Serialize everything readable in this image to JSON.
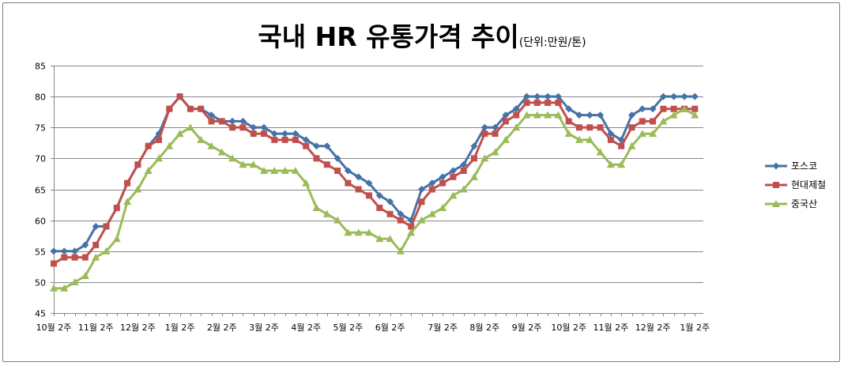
{
  "chart_data": {
    "type": "line",
    "title": "국내 HR 유통가격 추이",
    "subtitle": "(단위:만원/톤)",
    "xlabel": "",
    "ylabel": "",
    "ylim": [
      45,
      85
    ],
    "yticks": [
      45,
      50,
      55,
      60,
      65,
      70,
      75,
      80,
      85
    ],
    "grid": "horizontal",
    "legend_position": "right",
    "x_tick_labels": [
      "10월 2주",
      "11월 2주",
      "12월 2주",
      "1월 2주",
      "2월 2주",
      "3월 2주",
      "4월 2주",
      "5월 2주",
      "6월 2주",
      "7월 2주",
      "8월 2주",
      "9월 2주",
      "10월 2주",
      "11월 2주",
      "12월 2주",
      "1월 2주"
    ],
    "x_tick_positions": [
      0,
      4,
      8,
      12,
      16,
      20,
      24,
      28,
      32,
      37,
      41,
      45,
      49,
      53,
      57,
      61
    ],
    "series": [
      {
        "name": "포스코",
        "color": "#4572A7",
        "marker": "diamond",
        "values": [
          55,
          55,
          55,
          56,
          59,
          59,
          62,
          66,
          69,
          72,
          74,
          78,
          80,
          78,
          78,
          77,
          76,
          76,
          76,
          75,
          75,
          74,
          74,
          74,
          73,
          72,
          72,
          70,
          68,
          67,
          66,
          64,
          63,
          61,
          60,
          65,
          66,
          67,
          68,
          69,
          72,
          75,
          75,
          77,
          78,
          80,
          80,
          80,
          80,
          78,
          77,
          77,
          77,
          74,
          73,
          77,
          78,
          78,
          80,
          80,
          80,
          80
        ]
      },
      {
        "name": "현대제철",
        "color": "#C0504D",
        "marker": "square",
        "values": [
          53,
          54,
          54,
          54,
          56,
          59,
          62,
          66,
          69,
          72,
          73,
          78,
          80,
          78,
          78,
          76,
          76,
          75,
          75,
          74,
          74,
          73,
          73,
          73,
          72,
          70,
          69,
          68,
          66,
          65,
          64,
          62,
          61,
          60,
          59,
          63,
          65,
          66,
          67,
          68,
          70,
          74,
          74,
          76,
          77,
          79,
          79,
          79,
          79,
          76,
          75,
          75,
          75,
          73,
          72,
          75,
          76,
          76,
          78,
          78,
          78,
          78
        ]
      },
      {
        "name": "중국산",
        "color": "#9BBB59",
        "marker": "triangle",
        "values": [
          49,
          49,
          50,
          51,
          54,
          55,
          57,
          63,
          65,
          68,
          70,
          72,
          74,
          75,
          73,
          72,
          71,
          70,
          69,
          69,
          68,
          68,
          68,
          68,
          66,
          62,
          61,
          60,
          58,
          58,
          58,
          57,
          57,
          55,
          58,
          60,
          61,
          62,
          64,
          65,
          67,
          70,
          71,
          73,
          75,
          77,
          77,
          77,
          77,
          74,
          73,
          73,
          71,
          69,
          69,
          72,
          74,
          74,
          76,
          77,
          78,
          77
        ]
      }
    ]
  }
}
